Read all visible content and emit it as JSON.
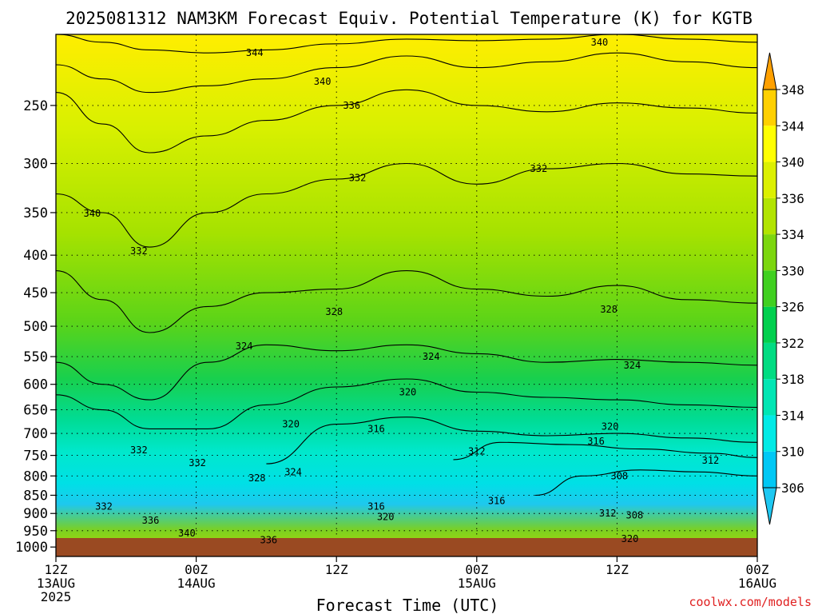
{
  "chart_data": {
    "type": "contour",
    "title": "2025081312 NAM3KM Forecast Equiv. Potential Temperature (K) for KGTB",
    "xlabel": "Forecast Time (UTC)",
    "ylabel": "",
    "credit": "coolwx.com/models",
    "y_axis": {
      "scale": "log-pressure",
      "ticks": [
        "250",
        "300",
        "350",
        "400",
        "450",
        "500",
        "550",
        "600",
        "650",
        "700",
        "750",
        "800",
        "850",
        "900",
        "950",
        "1000"
      ],
      "range_hpa": [
        200,
        1030
      ]
    },
    "x_axis": {
      "range_hours": [
        0,
        60
      ],
      "ticks": [
        {
          "hour": 0,
          "l1": "12Z",
          "l2": "13AUG",
          "l3": "2025"
        },
        {
          "hour": 12,
          "l1": "00Z",
          "l2": "14AUG",
          "l3": ""
        },
        {
          "hour": 24,
          "l1": "12Z",
          "l2": "",
          "l3": ""
        },
        {
          "hour": 36,
          "l1": "00Z",
          "l2": "15AUG",
          "l3": ""
        },
        {
          "hour": 48,
          "l1": "12Z",
          "l2": "",
          "l3": ""
        },
        {
          "hour": 60,
          "l1": "00Z",
          "l2": "16AUG",
          "l3": ""
        }
      ]
    },
    "colorbar": {
      "levels": [
        306,
        310,
        314,
        318,
        322,
        326,
        330,
        334,
        336,
        340,
        344,
        348
      ],
      "labels": [
        "306",
        "310",
        "314",
        "318",
        "322",
        "326",
        "330",
        "334",
        "336",
        "340",
        "344",
        "348"
      ],
      "colors": [
        "#00c8f5",
        "#00eae6",
        "#00e6b4",
        "#00dc82",
        "#00d04e",
        "#40d020",
        "#7cd60e",
        "#b2e400",
        "#dcf000",
        "#ffff00",
        "#ffd000",
        "#ffa000"
      ]
    },
    "ground_color": "#9a4a22",
    "isotherms": [
      {
        "value": 344,
        "label": "344",
        "hours": [
          0,
          4,
          8,
          13,
          18,
          24,
          30,
          36,
          42,
          48,
          54,
          60
        ],
        "pressures": [
          200,
          205,
          210,
          212,
          210,
          206,
          203,
          204,
          203,
          200,
          203,
          205
        ]
      },
      {
        "value": 340,
        "label": "340",
        "hours": [
          0,
          4,
          8,
          13,
          18,
          24,
          30,
          36,
          42,
          48,
          54,
          60
        ],
        "pressures": [
          220,
          230,
          240,
          235,
          230,
          222,
          214,
          222,
          218,
          212,
          218,
          222
        ]
      },
      {
        "value": 336,
        "label": "336",
        "hours": [
          0,
          4,
          8,
          13,
          18,
          24,
          30,
          36,
          42,
          48,
          54,
          60
        ],
        "pressures": [
          240,
          265,
          290,
          275,
          262,
          250,
          238,
          250,
          255,
          248,
          252,
          256
        ]
      },
      {
        "value": 332,
        "label": "332",
        "hours": [
          0,
          4,
          8,
          13,
          18,
          24,
          30,
          36,
          42,
          48,
          54,
          60
        ],
        "pressures": [
          330,
          350,
          390,
          350,
          330,
          315,
          300,
          320,
          305,
          300,
          310,
          312
        ]
      },
      {
        "value": 328,
        "label": "328",
        "hours": [
          0,
          4,
          8,
          13,
          18,
          24,
          30,
          36,
          42,
          48,
          54,
          60
        ],
        "pressures": [
          420,
          460,
          510,
          470,
          450,
          445,
          420,
          445,
          455,
          440,
          460,
          465
        ]
      },
      {
        "value": 324,
        "label": "324",
        "hours": [
          0,
          4,
          8,
          13,
          18,
          24,
          30,
          36,
          42,
          48,
          54,
          60
        ],
        "pressures": [
          560,
          600,
          630,
          560,
          530,
          540,
          530,
          545,
          560,
          555,
          560,
          565
        ]
      },
      {
        "value": 320,
        "label": "320",
        "hours": [
          0,
          4,
          8,
          13,
          18,
          24,
          30,
          36,
          42,
          48,
          54,
          60
        ],
        "pressures": [
          620,
          650,
          690,
          690,
          640,
          605,
          590,
          615,
          625,
          630,
          640,
          645
        ]
      },
      {
        "value": 316,
        "label": "316",
        "hours": [
          18,
          24,
          30,
          36,
          42,
          48,
          54,
          60
        ],
        "pressures": [
          770,
          680,
          665,
          695,
          705,
          700,
          710,
          720
        ]
      },
      {
        "value": 312,
        "label": "312",
        "hours": [
          34,
          38,
          44,
          50,
          56,
          60
        ],
        "pressures": [
          760,
          720,
          725,
          735,
          745,
          755
        ]
      },
      {
        "value": 308,
        "label": "308",
        "hours": [
          41,
          45,
          50,
          55,
          60
        ],
        "pressures": [
          850,
          800,
          785,
          790,
          800
        ]
      }
    ],
    "contour_labels": [
      {
        "text": "344",
        "hour": 17.0,
        "pressure": 212
      },
      {
        "text": "340",
        "hour": 46.5,
        "pressure": 205
      },
      {
        "text": "340",
        "hour": 22.8,
        "pressure": 232
      },
      {
        "text": "336",
        "hour": 25.3,
        "pressure": 250
      },
      {
        "text": "332",
        "hour": 25.8,
        "pressure": 314
      },
      {
        "text": "332",
        "hour": 41.3,
        "pressure": 305
      },
      {
        "text": "340",
        "hour": 3.1,
        "pressure": 351
      },
      {
        "text": "332",
        "hour": 7.1,
        "pressure": 395
      },
      {
        "text": "328",
        "hour": 23.8,
        "pressure": 478
      },
      {
        "text": "328",
        "hour": 47.3,
        "pressure": 474
      },
      {
        "text": "324",
        "hour": 16.1,
        "pressure": 532
      },
      {
        "text": "324",
        "hour": 32.1,
        "pressure": 550
      },
      {
        "text": "324",
        "hour": 49.3,
        "pressure": 565
      },
      {
        "text": "320",
        "hour": 30.1,
        "pressure": 615
      },
      {
        "text": "320",
        "hour": 20.1,
        "pressure": 680
      },
      {
        "text": "316",
        "hour": 27.4,
        "pressure": 690
      },
      {
        "text": "320",
        "hour": 47.4,
        "pressure": 685
      },
      {
        "text": "316",
        "hour": 46.2,
        "pressure": 718
      },
      {
        "text": "312",
        "hour": 36.0,
        "pressure": 740
      },
      {
        "text": "312",
        "hour": 56.0,
        "pressure": 762
      },
      {
        "text": "308",
        "hour": 48.2,
        "pressure": 800
      },
      {
        "text": "332",
        "hour": 7.1,
        "pressure": 738
      },
      {
        "text": "332",
        "hour": 12.1,
        "pressure": 768
      },
      {
        "text": "324",
        "hour": 20.3,
        "pressure": 790
      },
      {
        "text": "328",
        "hour": 17.2,
        "pressure": 805
      },
      {
        "text": "332",
        "hour": 4.1,
        "pressure": 880
      },
      {
        "text": "316",
        "hour": 27.4,
        "pressure": 880
      },
      {
        "text": "316",
        "hour": 37.7,
        "pressure": 865
      },
      {
        "text": "336",
        "hour": 8.1,
        "pressure": 920
      },
      {
        "text": "320",
        "hour": 28.2,
        "pressure": 910
      },
      {
        "text": "312",
        "hour": 47.2,
        "pressure": 900
      },
      {
        "text": "308",
        "hour": 49.5,
        "pressure": 905
      },
      {
        "text": "340",
        "hour": 11.2,
        "pressure": 958
      },
      {
        "text": "336",
        "hour": 18.2,
        "pressure": 978
      },
      {
        "text": "320",
        "hour": 49.1,
        "pressure": 975
      }
    ],
    "grid": true
  }
}
